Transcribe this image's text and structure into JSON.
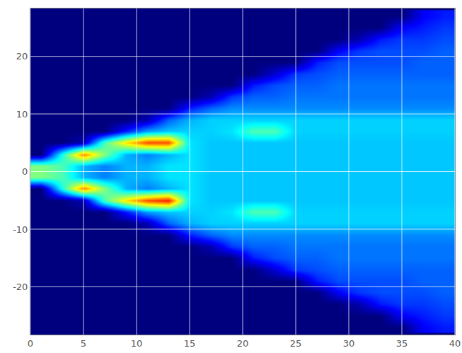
{
  "chart_data": {
    "type": "heatmap",
    "color": "jet",
    "grid": true,
    "x": [
      1,
      3,
      5,
      7,
      9,
      11,
      13,
      15,
      17,
      19,
      21,
      23,
      25,
      27,
      29,
      31,
      33,
      35,
      37,
      39
    ],
    "y": [
      -27,
      -25,
      -23,
      -21,
      -19,
      -17,
      -15,
      -13,
      -11,
      -9,
      -7,
      -5,
      -3,
      -1,
      1,
      3,
      5,
      7,
      9,
      11,
      13,
      15,
      17,
      19,
      21,
      23,
      25,
      27
    ],
    "z": [
      [
        0,
        0,
        0,
        0,
        0,
        0,
        0,
        0,
        0,
        0,
        0,
        0,
        0,
        0,
        0,
        0,
        0,
        0,
        0.12,
        0.15
      ],
      [
        0,
        0,
        0,
        0,
        0,
        0,
        0,
        0,
        0,
        0,
        0,
        0,
        0,
        0,
        0,
        0,
        0,
        0.12,
        0.15,
        0.18
      ],
      [
        0,
        0,
        0,
        0,
        0,
        0,
        0,
        0,
        0,
        0,
        0,
        0,
        0,
        0,
        0,
        0.05,
        0.15,
        0.18,
        0.18,
        0.2
      ],
      [
        0,
        0,
        0,
        0,
        0,
        0,
        0,
        0,
        0,
        0,
        0,
        0,
        0,
        0,
        0.12,
        0.18,
        0.2,
        0.2,
        0.2,
        0.22
      ],
      [
        0,
        0,
        0,
        0,
        0,
        0,
        0,
        0,
        0,
        0,
        0,
        0,
        0,
        0.15,
        0.2,
        0.2,
        0.2,
        0.2,
        0.22,
        0.22
      ],
      [
        0,
        0,
        0,
        0,
        0,
        0,
        0,
        0,
        0,
        0,
        0,
        0.08,
        0.18,
        0.2,
        0.22,
        0.22,
        0.22,
        0.22,
        0.22,
        0.22
      ],
      [
        0,
        0,
        0,
        0,
        0,
        0,
        0,
        0,
        0,
        0,
        0.15,
        0.2,
        0.22,
        0.22,
        0.24,
        0.24,
        0.24,
        0.24,
        0.24,
        0.24
      ],
      [
        0,
        0,
        0,
        0,
        0,
        0,
        0,
        0,
        0.05,
        0.18,
        0.22,
        0.22,
        0.24,
        0.24,
        0.24,
        0.24,
        0.24,
        0.24,
        0.24,
        0.24
      ],
      [
        0,
        0,
        0,
        0,
        0,
        0,
        0,
        0.15,
        0.22,
        0.26,
        0.26,
        0.26,
        0.26,
        0.26,
        0.26,
        0.26,
        0.26,
        0.26,
        0.26,
        0.26
      ],
      [
        0,
        0,
        0,
        0,
        0,
        0.05,
        0.22,
        0.3,
        0.33,
        0.33,
        0.33,
        0.33,
        0.33,
        0.33,
        0.33,
        0.33,
        0.33,
        0.33,
        0.33,
        0.33
      ],
      [
        0,
        0,
        0,
        0,
        0.15,
        0.28,
        0.32,
        0.33,
        0.33,
        0.35,
        0.45,
        0.45,
        0.33,
        0.33,
        0.33,
        0.33,
        0.33,
        0.33,
        0.33,
        0.33
      ],
      [
        0,
        0,
        0.05,
        0.45,
        0.65,
        0.8,
        0.85,
        0.35,
        0.32,
        0.32,
        0.32,
        0.32,
        0.32,
        0.32,
        0.32,
        0.32,
        0.32,
        0.32,
        0.32,
        0.32
      ],
      [
        0,
        0.4,
        0.75,
        0.5,
        0.3,
        0.25,
        0.3,
        0.35,
        0.32,
        0.32,
        0.32,
        0.32,
        0.32,
        0.32,
        0.32,
        0.32,
        0.32,
        0.32,
        0.32,
        0.32
      ],
      [
        0.5,
        0.45,
        0.3,
        0.25,
        0.3,
        0.3,
        0.35,
        0.35,
        0.32,
        0.32,
        0.32,
        0.32,
        0.32,
        0.32,
        0.32,
        0.32,
        0.32,
        0.32,
        0.32,
        0.32
      ],
      [
        0.5,
        0.45,
        0.3,
        0.25,
        0.3,
        0.3,
        0.35,
        0.35,
        0.32,
        0.32,
        0.32,
        0.32,
        0.32,
        0.32,
        0.32,
        0.32,
        0.32,
        0.32,
        0.32,
        0.32
      ],
      [
        0,
        0.4,
        0.75,
        0.5,
        0.3,
        0.25,
        0.3,
        0.35,
        0.32,
        0.32,
        0.32,
        0.32,
        0.32,
        0.32,
        0.32,
        0.32,
        0.32,
        0.32,
        0.32,
        0.32
      ],
      [
        0,
        0,
        0.05,
        0.45,
        0.65,
        0.8,
        0.8,
        0.35,
        0.32,
        0.32,
        0.32,
        0.32,
        0.32,
        0.32,
        0.32,
        0.32,
        0.32,
        0.32,
        0.32,
        0.32
      ],
      [
        0,
        0,
        0,
        0,
        0.15,
        0.28,
        0.32,
        0.33,
        0.33,
        0.35,
        0.45,
        0.45,
        0.33,
        0.33,
        0.33,
        0.33,
        0.33,
        0.33,
        0.33,
        0.33
      ],
      [
        0,
        0,
        0,
        0,
        0,
        0.05,
        0.22,
        0.3,
        0.33,
        0.33,
        0.33,
        0.33,
        0.33,
        0.33,
        0.33,
        0.33,
        0.33,
        0.33,
        0.33,
        0.33
      ],
      [
        0,
        0,
        0,
        0,
        0,
        0,
        0,
        0.15,
        0.22,
        0.26,
        0.26,
        0.26,
        0.26,
        0.26,
        0.26,
        0.26,
        0.26,
        0.26,
        0.26,
        0.26
      ],
      [
        0,
        0,
        0,
        0,
        0,
        0,
        0,
        0,
        0.05,
        0.18,
        0.22,
        0.22,
        0.24,
        0.24,
        0.24,
        0.24,
        0.24,
        0.24,
        0.24,
        0.24
      ],
      [
        0,
        0,
        0,
        0,
        0,
        0,
        0,
        0,
        0,
        0,
        0.15,
        0.2,
        0.22,
        0.22,
        0.24,
        0.24,
        0.24,
        0.24,
        0.24,
        0.24
      ],
      [
        0,
        0,
        0,
        0,
        0,
        0,
        0,
        0,
        0,
        0,
        0,
        0.08,
        0.18,
        0.2,
        0.22,
        0.22,
        0.22,
        0.22,
        0.22,
        0.22
      ],
      [
        0,
        0,
        0,
        0,
        0,
        0,
        0,
        0,
        0,
        0,
        0,
        0,
        0,
        0.15,
        0.2,
        0.2,
        0.2,
        0.2,
        0.22,
        0.22
      ],
      [
        0,
        0,
        0,
        0,
        0,
        0,
        0,
        0,
        0,
        0,
        0,
        0,
        0,
        0,
        0.12,
        0.18,
        0.2,
        0.2,
        0.2,
        0.22
      ],
      [
        0,
        0,
        0,
        0,
        0,
        0,
        0,
        0,
        0,
        0,
        0,
        0,
        0,
        0,
        0,
        0.05,
        0.15,
        0.18,
        0.18,
        0.2
      ],
      [
        0,
        0,
        0,
        0,
        0,
        0,
        0,
        0,
        0,
        0,
        0,
        0,
        0,
        0,
        0,
        0,
        0,
        0.12,
        0.15,
        0.18
      ],
      [
        0,
        0,
        0,
        0,
        0,
        0,
        0,
        0,
        0,
        0,
        0,
        0,
        0,
        0,
        0,
        0,
        0,
        0,
        0.12,
        0.15
      ]
    ],
    "zlim": [
      0,
      1
    ],
    "xlim": [
      0,
      40
    ],
    "ylim": [
      -28.3,
      28.3
    ],
    "xticks": [
      0,
      5,
      10,
      15,
      20,
      25,
      30,
      35,
      40
    ],
    "yticks": [
      -20,
      -10,
      0,
      10,
      20
    ]
  }
}
